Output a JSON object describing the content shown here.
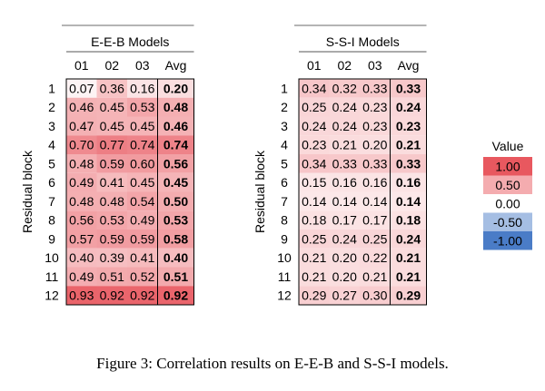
{
  "chart_data": [
    {
      "type": "heatmap",
      "title": "E-E-B Models",
      "ylabel": "Residual block",
      "columns": [
        "01",
        "02",
        "03",
        "Avg"
      ],
      "rows": [
        "1",
        "2",
        "3",
        "4",
        "5",
        "6",
        "7",
        "8",
        "9",
        "10",
        "11",
        "12"
      ],
      "values": [
        [
          "0.07",
          "0.36",
          "0.16",
          "0.20"
        ],
        [
          "0.46",
          "0.45",
          "0.53",
          "0.48"
        ],
        [
          "0.47",
          "0.45",
          "0.45",
          "0.46"
        ],
        [
          "0.70",
          "0.77",
          "0.74",
          "0.74"
        ],
        [
          "0.48",
          "0.59",
          "0.60",
          "0.56"
        ],
        [
          "0.49",
          "0.41",
          "0.45",
          "0.45"
        ],
        [
          "0.48",
          "0.48",
          "0.54",
          "0.50"
        ],
        [
          "0.56",
          "0.53",
          "0.49",
          "0.53"
        ],
        [
          "0.57",
          "0.59",
          "0.59",
          "0.58"
        ],
        [
          "0.40",
          "0.39",
          "0.41",
          "0.40"
        ],
        [
          "0.49",
          "0.51",
          "0.52",
          "0.51"
        ],
        [
          "0.93",
          "0.92",
          "0.92",
          "0.92"
        ]
      ]
    },
    {
      "type": "heatmap",
      "title": "S-S-I Models",
      "ylabel": "Residual block",
      "columns": [
        "01",
        "02",
        "03",
        "Avg"
      ],
      "rows": [
        "1",
        "2",
        "3",
        "4",
        "5",
        "6",
        "7",
        "8",
        "9",
        "10",
        "11",
        "12"
      ],
      "values": [
        [
          "0.34",
          "0.32",
          "0.33",
          "0.33"
        ],
        [
          "0.25",
          "0.24",
          "0.23",
          "0.24"
        ],
        [
          "0.24",
          "0.24",
          "0.23",
          "0.23"
        ],
        [
          "0.23",
          "0.21",
          "0.20",
          "0.21"
        ],
        [
          "0.34",
          "0.33",
          "0.33",
          "0.33"
        ],
        [
          "0.15",
          "0.16",
          "0.16",
          "0.16"
        ],
        [
          "0.14",
          "0.14",
          "0.14",
          "0.14"
        ],
        [
          "0.18",
          "0.17",
          "0.17",
          "0.18"
        ],
        [
          "0.25",
          "0.24",
          "0.25",
          "0.24"
        ],
        [
          "0.21",
          "0.20",
          "0.22",
          "0.21"
        ],
        [
          "0.21",
          "0.20",
          "0.21",
          "0.21"
        ],
        [
          "0.29",
          "0.27",
          "0.30",
          "0.29"
        ]
      ]
    }
  ],
  "legend": {
    "title": "Value",
    "items": [
      "1.00",
      "0.50",
      "0.00",
      "-0.50",
      "-1.00"
    ]
  },
  "colors": {
    "positive": "#e8585f",
    "negative": "#4a7cc7",
    "neutral": "#ffffff"
  },
  "caption": "Figure 3: Correlation results on E-E-B and S-S-I models."
}
